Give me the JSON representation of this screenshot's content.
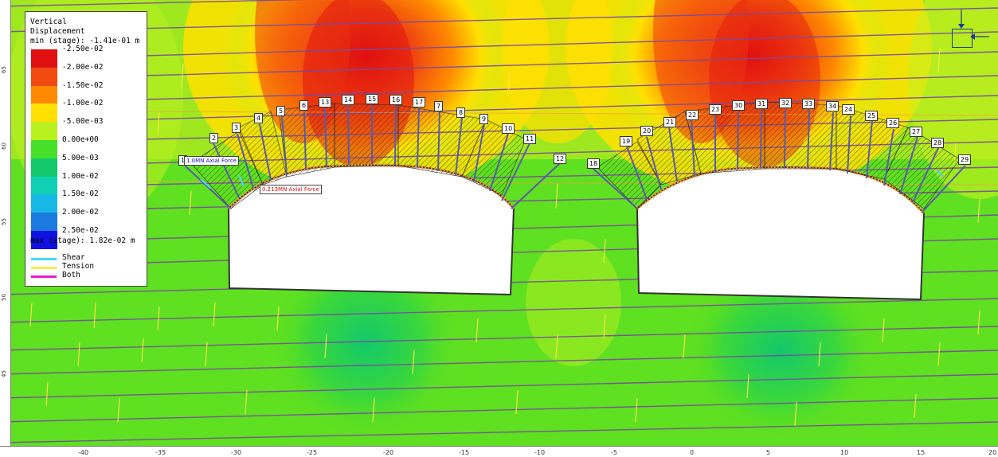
{
  "legend": {
    "title_line1": "Vertical",
    "title_line2": "Displacement",
    "min_text": "min (stage): -1.41e-01 m",
    "max_text": "max (stage): 1.82e-02 m",
    "scale": [
      {
        "label": "-2.50e-02",
        "color": "#e01010"
      },
      {
        "label": "-2.00e-02",
        "color": "#f04a10"
      },
      {
        "label": "-1.50e-02",
        "color": "#ff8a00"
      },
      {
        "label": "-1.00e-02",
        "color": "#ffe000"
      },
      {
        "label": "-5.00e-03",
        "color": "#b8f020"
      },
      {
        "label": "0.00e+00",
        "color": "#46e02a"
      },
      {
        "label": "5.00e-03",
        "color": "#12c86a"
      },
      {
        "label": "1.00e-02",
        "color": "#10d0b4"
      },
      {
        "label": "1.50e-02",
        "color": "#18b8e6"
      },
      {
        "label": "2.00e-02",
        "color": "#1a7ae0"
      },
      {
        "label": "2.50e-02",
        "color": "#1010e0"
      }
    ],
    "line_keys": [
      {
        "label": "Shear",
        "color": "#4ad6ff"
      },
      {
        "label": "Tension",
        "color": "#ffe84a"
      },
      {
        "label": "Both",
        "color": "#e020d0"
      }
    ]
  },
  "axis": {
    "x_ticks": [
      "-40",
      "-35",
      "-30",
      "-25",
      "-20",
      "-15",
      "-10",
      "-5",
      "0",
      "5",
      "10",
      "15",
      "20"
    ],
    "y_ticks": [
      "65",
      "60",
      "55",
      "50",
      "45"
    ]
  },
  "axial_force_labels": {
    "left": "1.0MN Axial Force",
    "right": "0.213MN Axial Force"
  },
  "bolts_left_tunnel": [
    "1",
    "2",
    "3",
    "4",
    "5",
    "6",
    "13",
    "14",
    "15",
    "16",
    "17",
    "7",
    "8",
    "9",
    "10",
    "11",
    "12"
  ],
  "bolts_right_tunnel": [
    "18",
    "19",
    "20",
    "21",
    "22",
    "23",
    "30",
    "31",
    "32",
    "33",
    "34",
    "24",
    "25",
    "26",
    "27",
    "28",
    "29"
  ]
}
